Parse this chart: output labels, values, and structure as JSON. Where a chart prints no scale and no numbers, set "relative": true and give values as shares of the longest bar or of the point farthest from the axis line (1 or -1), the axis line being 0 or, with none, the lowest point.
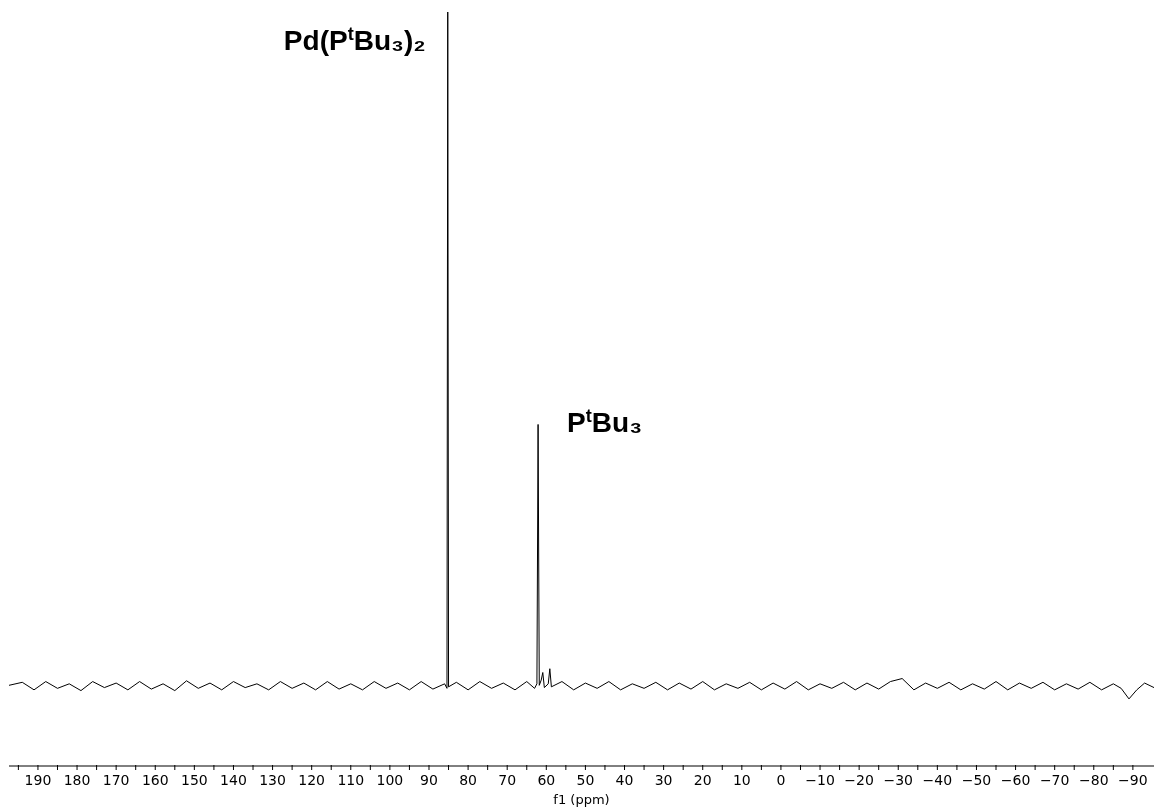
{
  "chart_data": {
    "type": "line",
    "relative": true,
    "xlabel": "f1 (ppm)",
    "xlim": [
      197.4,
      -95.4
    ],
    "xticks": [
      {
        "value": 195,
        "label": null
      },
      190,
      {
        "value": 185,
        "label": null
      },
      180,
      {
        "value": 175,
        "label": null
      },
      170,
      {
        "value": 165,
        "label": null
      },
      160,
      {
        "value": 155,
        "label": null
      },
      150,
      {
        "value": 145,
        "label": null
      },
      140,
      {
        "value": 135,
        "label": null
      },
      130,
      {
        "value": 125,
        "label": null
      },
      120,
      {
        "value": 115,
        "label": null
      },
      110,
      {
        "value": 105,
        "label": null
      },
      100,
      {
        "value": 95,
        "label": null
      },
      90,
      {
        "value": 85,
        "label": null
      },
      80,
      {
        "value": 75,
        "label": null
      },
      70,
      {
        "value": 65,
        "label": null
      },
      60,
      {
        "value": 55,
        "label": null
      },
      50,
      {
        "value": 45,
        "label": null
      },
      40,
      {
        "value": 35,
        "label": null
      },
      30,
      {
        "value": 25,
        "label": null
      },
      20,
      {
        "value": 15,
        "label": null
      },
      10,
      {
        "value": 5,
        "label": null
      },
      0,
      {
        "value": -5,
        "label": null
      },
      {
        "value": -10,
        "label": "−10"
      },
      {
        "value": -15,
        "label": null
      },
      {
        "value": -20,
        "label": "−20"
      },
      {
        "value": -25,
        "label": null
      },
      {
        "value": -30,
        "label": "−30"
      },
      {
        "value": -35,
        "label": null
      },
      {
        "value": -40,
        "label": "−40"
      },
      {
        "value": -45,
        "label": null
      },
      {
        "value": -50,
        "label": "−50"
      },
      {
        "value": -55,
        "label": null
      },
      {
        "value": -60,
        "label": "−60"
      },
      {
        "value": -65,
        "label": null
      },
      {
        "value": -70,
        "label": "−70"
      },
      {
        "value": -75,
        "label": null
      },
      {
        "value": -80,
        "label": "−80"
      },
      {
        "value": -85,
        "label": null
      },
      {
        "value": -90,
        "label": "−90"
      }
    ],
    "annotations": [
      {
        "text": "Pd(P$^{t}$Bu₃)₂",
        "x": 85.2,
        "y": 1
      },
      {
        "text": "P$^{t}$Bu₃",
        "x": 62.1,
        "y": 0.453
      }
    ],
    "series": [
      {
        "color": "#000000",
        "x": [
          197.4,
          194,
          191,
          188,
          185,
          182,
          179,
          176,
          173,
          170,
          167,
          164,
          161,
          158,
          155,
          152,
          149,
          146,
          143,
          140,
          137,
          134,
          131,
          128,
          125,
          122,
          119,
          116,
          113,
          110,
          107,
          104,
          101,
          98,
          95,
          92,
          89,
          86,
          85.4,
          85.2,
          85,
          83,
          80,
          77,
          74,
          71,
          68,
          65,
          63,
          62.4,
          62.1,
          61.8,
          61.3,
          60.9,
          60.5,
          59.5,
          59.1,
          58.7,
          56,
          53,
          50,
          47,
          44,
          41,
          38,
          35,
          32,
          29,
          26,
          23,
          20,
          17,
          14,
          11,
          8,
          5,
          2,
          -1,
          -4,
          -7,
          -10,
          -13,
          -16,
          -19,
          -22,
          -25,
          -28,
          -31,
          -34,
          -37,
          -40,
          -43,
          -46,
          -49,
          -52,
          -55,
          -58,
          -61,
          -64,
          -67,
          -70,
          -73,
          -76,
          -79,
          -82,
          -85,
          -87,
          -89,
          -91,
          -93,
          -95.4
        ],
        "values": [
          0.107,
          0.111,
          0.101,
          0.112,
          0.103,
          0.109,
          0.1,
          0.112,
          0.104,
          0.11,
          0.101,
          0.112,
          0.102,
          0.109,
          0.1,
          0.113,
          0.103,
          0.11,
          0.101,
          0.112,
          0.104,
          0.109,
          0.101,
          0.112,
          0.103,
          0.11,
          0.101,
          0.112,
          0.102,
          0.109,
          0.101,
          0.112,
          0.103,
          0.11,
          0.101,
          0.112,
          0.102,
          0.109,
          0.103,
          1,
          0.105,
          0.111,
          0.101,
          0.112,
          0.103,
          0.11,
          0.101,
          0.112,
          0.103,
          0.109,
          0.453,
          0.107,
          0.114,
          0.124,
          0.104,
          0.109,
          0.129,
          0.105,
          0.112,
          0.101,
          0.11,
          0.103,
          0.112,
          0.101,
          0.109,
          0.103,
          0.111,
          0.101,
          0.11,
          0.102,
          0.112,
          0.101,
          0.109,
          0.103,
          0.111,
          0.101,
          0.11,
          0.102,
          0.112,
          0.101,
          0.109,
          0.103,
          0.111,
          0.101,
          0.11,
          0.102,
          0.112,
          0.116,
          0.101,
          0.11,
          0.103,
          0.111,
          0.101,
          0.109,
          0.102,
          0.112,
          0.101,
          0.11,
          0.103,
          0.111,
          0.101,
          0.109,
          0.102,
          0.111,
          0.101,
          0.109,
          0.103,
          0.089,
          0.101,
          0.11,
          0.104
        ]
      }
    ]
  }
}
